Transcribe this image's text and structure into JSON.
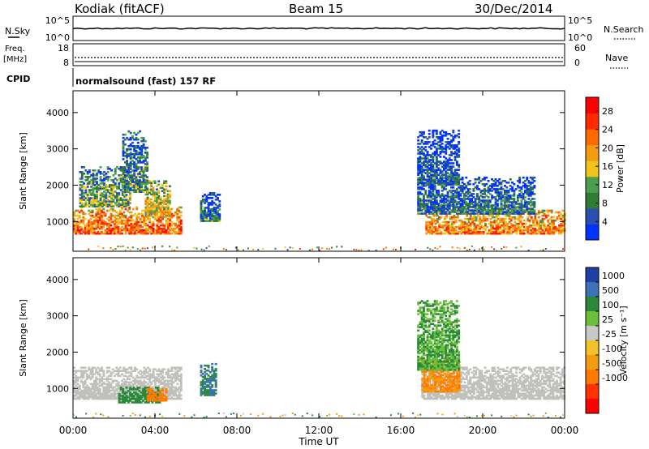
{
  "header": {
    "station": "Kodiak (fitACF)",
    "beam": "Beam 15",
    "date": "30/Dec/2014"
  },
  "top_panels": {
    "nsky_label": "N.Sky",
    "nsky_ticks": [
      "10^5",
      "10^0"
    ],
    "nsearch_label": "N.Search",
    "nsearch_ticks": [
      "10^5",
      "10^0"
    ],
    "freq_label_1": "Freq.",
    "freq_label_2": "[MHz]",
    "freq_ticks": [
      "18",
      "8"
    ],
    "nave_label": "Nave",
    "nave_ticks": [
      "60",
      "0"
    ],
    "cpid_label": "CPID",
    "cpid_text": "normalsound (fast) 157 RF"
  },
  "colors": {
    "power_scale": [
      "#0033ff",
      "#2a4fb0",
      "#2e7d32",
      "#4c9e50",
      "#f0c419",
      "#f39c12",
      "#ff6a00",
      "#ff2a00",
      "#ff0000"
    ],
    "velocity_scale": [
      "#1f3fa8",
      "#3e72b8",
      "#2a8a3a",
      "#6bbf3a",
      "#c8c8c4",
      "#f3c228",
      "#f39c12",
      "#ff7a00",
      "#ff3300",
      "#ff0000"
    ],
    "ground_scatter": "#c0c0bc"
  },
  "chart_data": [
    {
      "type": "heatmap",
      "name": "power",
      "xlabel": "Time UT",
      "ylabel": "Slant Range [km]",
      "x_ticks": [
        "00:00",
        "04:00",
        "08:00",
        "12:00",
        "16:00",
        "20:00",
        "00:00"
      ],
      "y_ticks": [
        "1000",
        "2000",
        "3000",
        "4000"
      ],
      "ylim": [
        180,
        4600
      ],
      "colorbar_label": "Power [dB]",
      "colorbar_ticks": [
        "4",
        "8",
        "12",
        "16",
        "20",
        "24",
        "28"
      ],
      "colorbar_range": [
        0,
        31
      ],
      "echo_regions": [
        {
          "t0": 0.0,
          "t1": 5.3,
          "r0": 650,
          "r1": 1400,
          "level": 24
        },
        {
          "t0": 0.3,
          "t1": 2.8,
          "r0": 1400,
          "r1": 2500,
          "level": 12
        },
        {
          "t0": 2.4,
          "t1": 3.6,
          "r0": 1800,
          "r1": 3500,
          "level": 10
        },
        {
          "t0": 3.5,
          "t1": 4.7,
          "r0": 1100,
          "r1": 2100,
          "level": 18
        },
        {
          "t0": 6.2,
          "t1": 7.1,
          "r0": 1000,
          "r1": 1800,
          "level": 8
        },
        {
          "t0": 17.2,
          "t1": 24.0,
          "r0": 650,
          "r1": 1300,
          "level": 22
        },
        {
          "t0": 16.8,
          "t1": 22.5,
          "r0": 1200,
          "r1": 2200,
          "level": 8
        },
        {
          "t0": 16.8,
          "t1": 18.8,
          "r0": 2000,
          "r1": 3500,
          "level": 6
        }
      ]
    },
    {
      "type": "heatmap",
      "name": "velocity",
      "xlabel": "Time UT",
      "ylabel": "Slant Range [km]",
      "x_ticks": [
        "00:00",
        "04:00",
        "08:00",
        "12:00",
        "16:00",
        "20:00",
        "00:00"
      ],
      "y_ticks": [
        "1000",
        "2000",
        "3000",
        "4000"
      ],
      "ylim": [
        180,
        4600
      ],
      "colorbar_label": "Velocity [m s^-1]",
      "colorbar_ticks": [
        "1000",
        "500",
        "100",
        "25",
        "-25",
        "-100",
        "-500",
        "-1000"
      ],
      "echo_regions": [
        {
          "t0": 0.0,
          "t1": 5.3,
          "r0": 700,
          "r1": 1600,
          "velocity": 0
        },
        {
          "t0": 2.2,
          "t1": 4.2,
          "r0": 600,
          "r1": 1050,
          "velocity": 150
        },
        {
          "t0": 3.6,
          "t1": 4.5,
          "r0": 650,
          "r1": 1000,
          "velocity": -400
        },
        {
          "t0": 6.2,
          "t1": 7.0,
          "r0": 800,
          "r1": 1700,
          "velocity": 300
        },
        {
          "t0": 17.0,
          "t1": 24.0,
          "r0": 700,
          "r1": 1600,
          "velocity": 0
        },
        {
          "t0": 17.0,
          "t1": 18.8,
          "r0": 900,
          "r1": 1800,
          "velocity": -300
        },
        {
          "t0": 16.8,
          "t1": 18.8,
          "r0": 1500,
          "r1": 3400,
          "velocity": 60
        }
      ]
    }
  ]
}
